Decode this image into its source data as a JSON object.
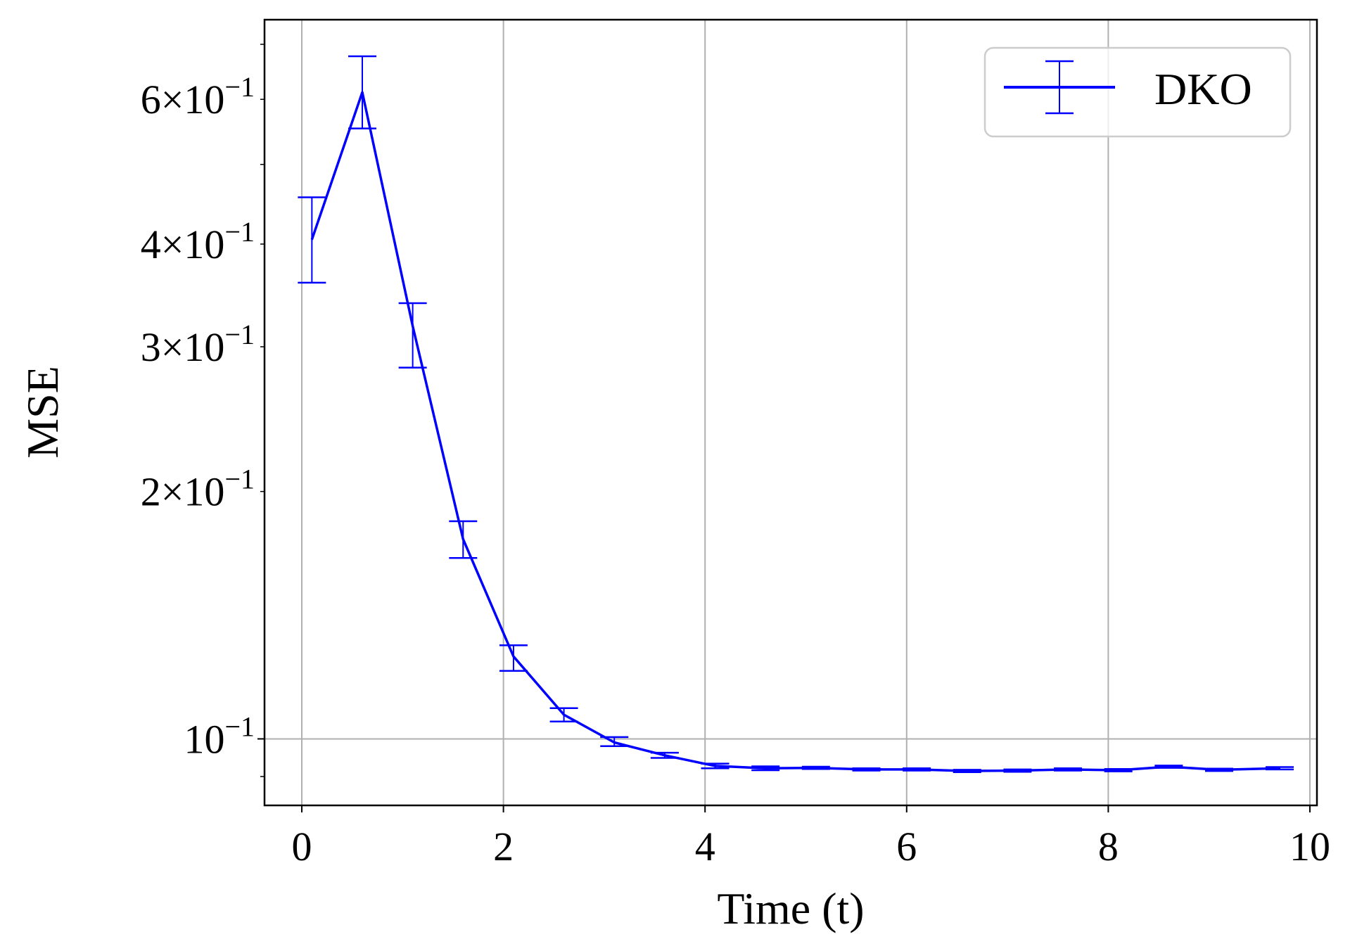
{
  "chart_data": {
    "type": "line",
    "x_label": "Time (t)",
    "y_label": "MSE",
    "y_scale": "log",
    "xlim": [
      -0.37,
      10.07
    ],
    "ylim": [
      0.083,
      0.75
    ],
    "grid": true,
    "legend_position": "top-right",
    "x_ticks": [
      0,
      2,
      4,
      6,
      8,
      10
    ],
    "x_tick_labels": [
      "0",
      "2",
      "4",
      "6",
      "8",
      "10"
    ],
    "y_major_ticks": [
      {
        "value": 0.1,
        "coef": "",
        "base": "10",
        "exp": "−1"
      }
    ],
    "y_minor_ticks": [
      {
        "value": 0.2,
        "coef": "2",
        "base": "10",
        "exp": "−1"
      },
      {
        "value": 0.3,
        "coef": "3",
        "base": "10",
        "exp": "−1"
      },
      {
        "value": 0.4,
        "coef": "4",
        "base": "10",
        "exp": "−1"
      },
      {
        "value": 0.6,
        "coef": "6",
        "base": "10",
        "exp": "−1"
      }
    ],
    "y_unlabeled_minor_ticks": [
      0.09,
      0.5,
      0.7
    ],
    "times_sign": "×",
    "series": [
      {
        "name": "DKO",
        "color": "#0000ff",
        "points": [
          {
            "x": 0.1,
            "y": 0.405,
            "y_low": 0.359,
            "y_high": 0.456
          },
          {
            "x": 0.6,
            "y": 0.612,
            "y_low": 0.553,
            "y_high": 0.677
          },
          {
            "x": 1.1,
            "y": 0.318,
            "y_low": 0.283,
            "y_high": 0.339
          },
          {
            "x": 1.6,
            "y": 0.175,
            "y_low": 0.166,
            "y_high": 0.184
          },
          {
            "x": 2.1,
            "y": 0.126,
            "y_low": 0.121,
            "y_high": 0.13
          },
          {
            "x": 2.6,
            "y": 0.107,
            "y_low": 0.105,
            "y_high": 0.109
          },
          {
            "x": 3.1,
            "y": 0.099,
            "y_low": 0.098,
            "y_high": 0.1005
          },
          {
            "x": 3.6,
            "y": 0.0955,
            "y_low": 0.0948,
            "y_high": 0.0962
          },
          {
            "x": 4.1,
            "y": 0.0927,
            "y_low": 0.0921,
            "y_high": 0.0933
          },
          {
            "x": 4.6,
            "y": 0.0921,
            "y_low": 0.0916,
            "y_high": 0.0926
          },
          {
            "x": 5.1,
            "y": 0.0922,
            "y_low": 0.0919,
            "y_high": 0.0925
          },
          {
            "x": 5.6,
            "y": 0.0918,
            "y_low": 0.0915,
            "y_high": 0.0921
          },
          {
            "x": 6.1,
            "y": 0.0918,
            "y_low": 0.0915,
            "y_high": 0.0921
          },
          {
            "x": 6.6,
            "y": 0.0914,
            "y_low": 0.0911,
            "y_high": 0.0917
          },
          {
            "x": 7.1,
            "y": 0.0915,
            "y_low": 0.0912,
            "y_high": 0.0918
          },
          {
            "x": 7.6,
            "y": 0.0918,
            "y_low": 0.0915,
            "y_high": 0.0921
          },
          {
            "x": 8.1,
            "y": 0.0916,
            "y_low": 0.0913,
            "y_high": 0.0919
          },
          {
            "x": 8.6,
            "y": 0.0925,
            "y_low": 0.0922,
            "y_high": 0.0928
          },
          {
            "x": 9.1,
            "y": 0.0917,
            "y_low": 0.0914,
            "y_high": 0.092
          },
          {
            "x": 9.7,
            "y": 0.0921,
            "y_low": 0.0918,
            "y_high": 0.0924
          }
        ]
      }
    ]
  }
}
